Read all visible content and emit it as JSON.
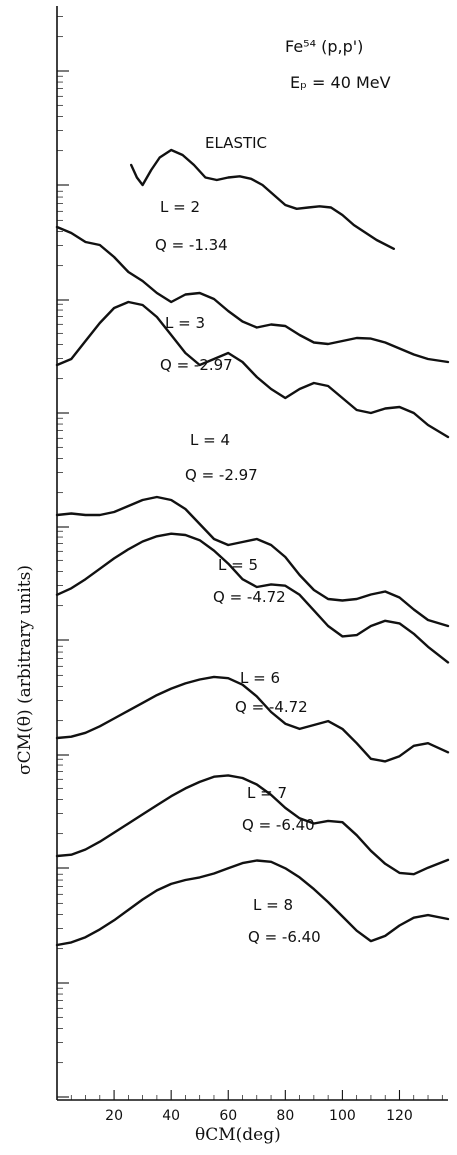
{
  "chart_data": {
    "type": "line",
    "title_line1": "Fe⁵⁴ (p,p')",
    "title_line2": "Eₚ = 40 MeV",
    "xlabel": "θCM(deg)",
    "ylabel": "σCM(θ) (arbitrary units)",
    "x_ticks": [
      "20",
      "40",
      "60",
      "80",
      "100",
      "120"
    ],
    "x_tick_values": [
      20,
      40,
      60,
      80,
      100,
      120
    ],
    "xlim": [
      0,
      137
    ],
    "y_scale": "log (arbitrary units, curves offset)",
    "grid": false,
    "series": [
      {
        "name": "ELASTIC",
        "label": "ELASTIC",
        "sublabel": "",
        "x": [
          26,
          28,
          30,
          33,
          36,
          40,
          44,
          48,
          52,
          56,
          60,
          64,
          68,
          72,
          76,
          80,
          84,
          88,
          92,
          96,
          100,
          104,
          108,
          112,
          118
        ],
        "y": [
          5.0,
          4.5,
          4.2,
          4.8,
          5.3,
          5.6,
          5.4,
          5.0,
          4.5,
          4.4,
          4.5,
          4.55,
          4.45,
          4.2,
          3.8,
          3.4,
          3.25,
          3.3,
          3.35,
          3.3,
          3.0,
          2.6,
          2.3,
          2.0,
          1.65
        ]
      },
      {
        "name": "L=2",
        "label": "L = 2",
        "sublabel": "Q = -1.34",
        "x": [
          0,
          5,
          10,
          15,
          20,
          25,
          30,
          35,
          40,
          45,
          50,
          55,
          60,
          65,
          70,
          75,
          80,
          85,
          90,
          95,
          100,
          105,
          110,
          115,
          120,
          125,
          130,
          137
        ],
        "y": [
          5.1,
          4.9,
          4.6,
          4.5,
          4.1,
          3.6,
          3.3,
          2.9,
          2.6,
          2.85,
          2.9,
          2.7,
          2.3,
          1.95,
          1.75,
          1.85,
          1.8,
          1.5,
          1.25,
          1.2,
          1.3,
          1.4,
          1.38,
          1.25,
          1.05,
          0.85,
          0.7,
          0.6
        ]
      },
      {
        "name": "L=3",
        "label": "L = 3",
        "sublabel": "Q = -2.97",
        "x": [
          0,
          5,
          10,
          15,
          20,
          25,
          30,
          35,
          40,
          45,
          50,
          55,
          60,
          65,
          70,
          75,
          80,
          85,
          90,
          95,
          100,
          105,
          110,
          115,
          120,
          125,
          130,
          137
        ],
        "y": [
          6.0,
          6.2,
          6.8,
          7.4,
          7.9,
          8.1,
          8.0,
          7.6,
          7.0,
          6.4,
          6.0,
          6.2,
          6.4,
          6.1,
          5.6,
          5.2,
          4.9,
          5.2,
          5.4,
          5.3,
          4.9,
          4.5,
          4.4,
          4.55,
          4.6,
          4.4,
          4.0,
          3.6
        ]
      },
      {
        "name": "L=4",
        "label": "L = 4",
        "sublabel": "Q = -2.97",
        "x": [
          0,
          5,
          10,
          15,
          20,
          25,
          30,
          35,
          40,
          45,
          50,
          55,
          60,
          65,
          70,
          75,
          80,
          85,
          90,
          95,
          100,
          105,
          110,
          115,
          120,
          125,
          130,
          137
        ],
        "y": [
          5.0,
          5.05,
          5.0,
          5.0,
          5.1,
          5.3,
          5.5,
          5.6,
          5.5,
          5.2,
          4.7,
          4.2,
          4.0,
          4.1,
          4.2,
          4.0,
          3.6,
          3.0,
          2.5,
          2.2,
          2.15,
          2.2,
          2.35,
          2.45,
          2.25,
          1.85,
          1.5,
          1.3
        ]
      },
      {
        "name": "L=5",
        "label": "L = 5",
        "sublabel": "Q = -4.72",
        "x": [
          0,
          5,
          10,
          15,
          20,
          25,
          30,
          35,
          40,
          45,
          50,
          55,
          60,
          65,
          70,
          75,
          80,
          85,
          90,
          95,
          100,
          105,
          110,
          115,
          120,
          125,
          130,
          137
        ],
        "y": [
          6.2,
          6.45,
          6.8,
          7.2,
          7.6,
          7.95,
          8.25,
          8.45,
          8.55,
          8.5,
          8.3,
          7.9,
          7.4,
          6.8,
          6.5,
          6.6,
          6.55,
          6.2,
          5.6,
          5.0,
          4.6,
          4.65,
          5.0,
          5.2,
          5.1,
          4.7,
          4.2,
          3.6
        ]
      },
      {
        "name": "L=6",
        "label": "L = 6",
        "sublabel": "Q = -4.72",
        "x": [
          0,
          5,
          10,
          15,
          20,
          25,
          30,
          35,
          40,
          45,
          50,
          55,
          60,
          65,
          70,
          75,
          80,
          85,
          90,
          95,
          100,
          105,
          110,
          115,
          120,
          125,
          130,
          137
        ],
        "y": [
          5.0,
          5.05,
          5.2,
          5.45,
          5.75,
          6.05,
          6.35,
          6.65,
          6.9,
          7.1,
          7.25,
          7.35,
          7.3,
          7.05,
          6.6,
          6.0,
          5.55,
          5.35,
          5.5,
          5.65,
          5.35,
          4.8,
          4.2,
          4.1,
          4.3,
          4.7,
          4.8,
          4.45
        ]
      },
      {
        "name": "L=7",
        "label": "L = 7",
        "sublabel": "Q = -6.40",
        "x": [
          0,
          5,
          10,
          15,
          20,
          25,
          30,
          35,
          40,
          45,
          50,
          55,
          60,
          65,
          70,
          75,
          80,
          85,
          90,
          95,
          100,
          105,
          110,
          115,
          120,
          125,
          130,
          137
        ],
        "y": [
          5.0,
          5.05,
          5.25,
          5.55,
          5.9,
          6.25,
          6.6,
          6.95,
          7.3,
          7.6,
          7.85,
          8.05,
          8.1,
          8.0,
          7.75,
          7.35,
          6.85,
          6.45,
          6.25,
          6.35,
          6.3,
          5.8,
          5.2,
          4.7,
          4.35,
          4.3,
          4.55,
          4.85
        ]
      },
      {
        "name": "L=8",
        "label": "L = 8",
        "sublabel": "Q = -6.40",
        "x": [
          0,
          5,
          10,
          15,
          20,
          25,
          30,
          35,
          40,
          45,
          50,
          55,
          60,
          65,
          70,
          75,
          80,
          85,
          90,
          95,
          100,
          105,
          110,
          115,
          120,
          125,
          130,
          137
        ],
        "y": [
          6.0,
          6.1,
          6.3,
          6.6,
          6.95,
          7.35,
          7.75,
          8.1,
          8.35,
          8.5,
          8.6,
          8.75,
          8.95,
          9.15,
          9.25,
          9.2,
          8.95,
          8.6,
          8.15,
          7.65,
          7.1,
          6.55,
          6.15,
          6.35,
          6.75,
          7.05,
          7.15,
          7.0
        ]
      }
    ]
  }
}
